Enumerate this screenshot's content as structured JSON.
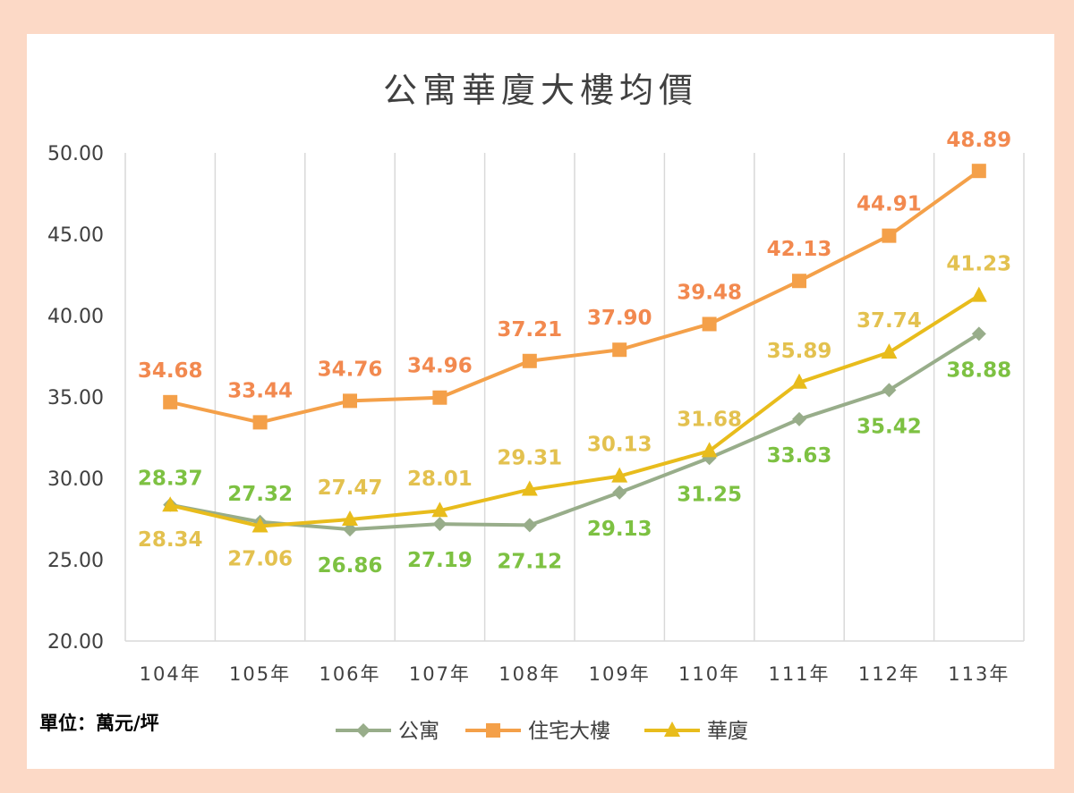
{
  "chart_data": {
    "type": "line",
    "title": "公寓華廈大樓均價",
    "unit_note": "單位：萬元/坪",
    "categories": [
      "104年",
      "105年",
      "106年",
      "107年",
      "108年",
      "109年",
      "110年",
      "111年",
      "112年",
      "113年"
    ],
    "y_ticks": [
      "20.00",
      "25.00",
      "30.00",
      "35.00",
      "40.00",
      "45.00",
      "50.00"
    ],
    "ylim": [
      20,
      50
    ],
    "grid": "vertical",
    "legend_position": "bottom",
    "series": [
      {
        "name": "公寓",
        "color": "#98ad8a",
        "label_color": "#7dc142",
        "marker": "diamond",
        "values": [
          28.37,
          27.32,
          26.86,
          27.19,
          27.12,
          29.13,
          31.25,
          33.63,
          35.42,
          38.88
        ],
        "labels": [
          "28.37",
          "27.32",
          "26.86",
          "27.19",
          "27.12",
          "29.13",
          "31.25",
          "33.63",
          "35.42",
          "38.88"
        ]
      },
      {
        "name": "住宅大樓",
        "color": "#f4a049",
        "label_color": "#f2894f",
        "marker": "square",
        "values": [
          34.68,
          33.44,
          34.76,
          34.96,
          37.21,
          37.9,
          39.48,
          42.13,
          44.91,
          48.89
        ],
        "labels": [
          "34.68",
          "33.44",
          "34.76",
          "34.96",
          "37.21",
          "37.90",
          "39.48",
          "42.13",
          "44.91",
          "48.89"
        ]
      },
      {
        "name": "華廈",
        "color": "#e8bc1c",
        "label_color": "#e3c14f",
        "marker": "triangle",
        "values": [
          28.34,
          27.06,
          27.47,
          28.01,
          29.31,
          30.13,
          31.68,
          35.89,
          37.74,
          41.23
        ],
        "labels": [
          "28.34",
          "27.06",
          "27.47",
          "28.01",
          "29.31",
          "30.13",
          "31.68",
          "35.89",
          "37.74",
          "41.23"
        ]
      }
    ]
  }
}
